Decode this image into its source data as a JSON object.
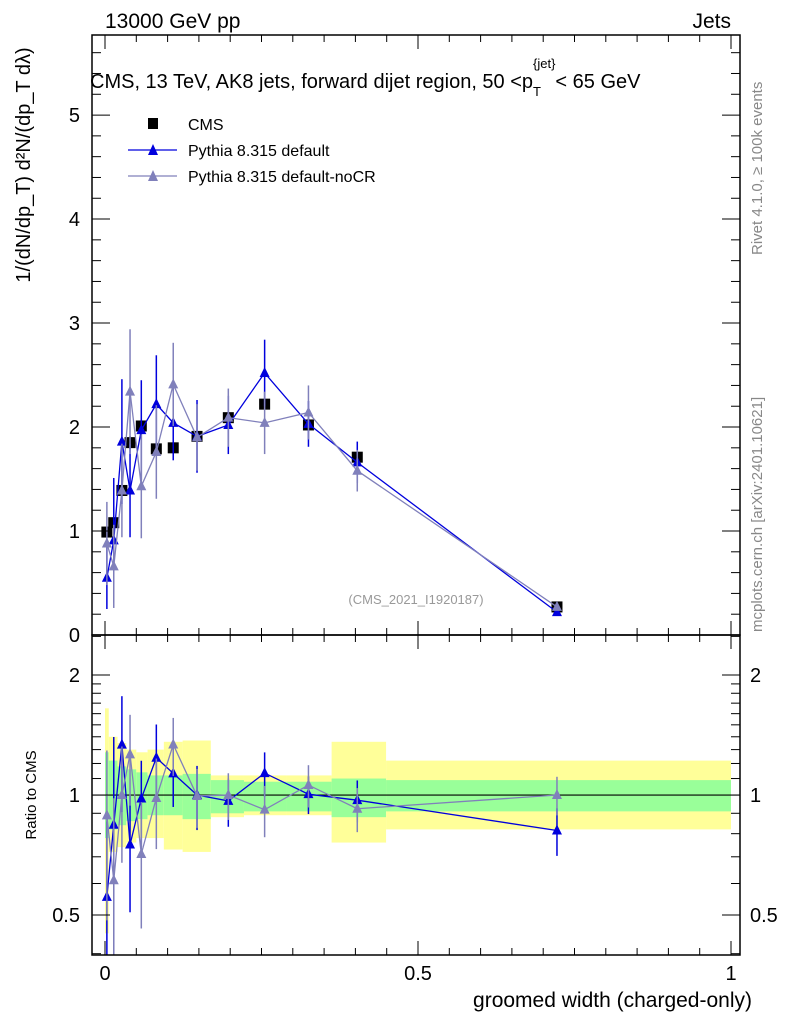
{
  "header": {
    "left": "13000 GeV pp",
    "right": "Jets"
  },
  "side_labels": {
    "rivet": "Rivet 4.1.0, ≥ 100k events",
    "mcplots": "mcplots.cern.ch [arXiv:2401.10621]"
  },
  "chart_data": {
    "type": "line",
    "title": "CMS, 13 TeV, AK8 jets, forward dijet region, 50 <p_T^{jet}< 65 GeV",
    "title_parts": {
      "main": "CMS, 13 TeV, AK8 jets, forward dijet region, 50 <p",
      "sub": "T",
      "sup": "{jet}",
      "tail": "< 65 GeV"
    },
    "analysis_tag": "(CMS_2021_I1920187)",
    "xlabel": "groomed width (charged-only)",
    "ylabel": "1/(dN/dp_T) d²N/(dp_T dλ)",
    "ratio_ylabel": "Ratio to CMS",
    "xlim": [
      0,
      1
    ],
    "ylim": [
      0,
      5.77
    ],
    "ratio_ylim": [
      0.397,
      2.52
    ],
    "ratio_scale": "log",
    "x_ticks": [
      0,
      0.5,
      1
    ],
    "x_tick_labels": [
      "0",
      "0.5",
      "1"
    ],
    "y_ticks": [
      0,
      1,
      2,
      3,
      4,
      5
    ],
    "y_tick_labels": [
      "0",
      "1",
      "2",
      "3",
      "4",
      "5"
    ],
    "ratio_ticks": [
      0.5,
      1,
      2
    ],
    "ratio_tick_labels": [
      "0.5",
      "1",
      "2"
    ],
    "legend_position": "top-left",
    "x": [
      0.003,
      0.014,
      0.027,
      0.04,
      0.058,
      0.082,
      0.109,
      0.147,
      0.197,
      0.255,
      0.325,
      0.403,
      0.722
    ],
    "bin_edges": [
      0,
      0.006,
      0.02,
      0.034,
      0.05,
      0.068,
      0.094,
      0.124,
      0.169,
      0.222,
      0.29,
      0.362,
      0.449,
      1.0
    ],
    "series": [
      {
        "name": "CMS",
        "color": "#000000",
        "marker": "square",
        "values": [
          0.99,
          1.08,
          1.39,
          1.85,
          2.01,
          1.79,
          1.8,
          1.91,
          2.09,
          2.22,
          2.02,
          1.71,
          0.27
        ],
        "errors": [
          0.05,
          0.05,
          0.05,
          0.06,
          0.06,
          0.06,
          0.06,
          0.05,
          0.05,
          0.05,
          0.05,
          0.05,
          0.02
        ]
      },
      {
        "name": "Pythia 8.315 default",
        "color": "#0000dd",
        "marker": "triangle",
        "values": [
          0.55,
          0.91,
          1.86,
          1.39,
          1.97,
          2.22,
          2.04,
          1.91,
          2.02,
          2.52,
          2.03,
          1.66,
          0.22
        ],
        "errors": [
          0.3,
          0.6,
          0.6,
          0.45,
          0.48,
          0.47,
          0.36,
          0.35,
          0.28,
          0.32,
          0.22,
          0.2,
          0.03
        ]
      },
      {
        "name": "Pythia 8.315 default-noCR",
        "color": "#8080bb",
        "marker": "triangle",
        "values": [
          0.88,
          0.66,
          1.39,
          2.34,
          1.43,
          1.76,
          2.41,
          1.9,
          2.09,
          2.04,
          2.14,
          1.58,
          0.27
        ],
        "errors": [
          0.4,
          0.4,
          0.45,
          0.6,
          0.5,
          0.45,
          0.4,
          0.32,
          0.28,
          0.3,
          0.26,
          0.2,
          0.03
        ]
      }
    ],
    "bands": {
      "stat_color": "#99ff99",
      "total_color": "#ffff99",
      "stat_lo": [
        0.78,
        0.82,
        0.84,
        0.86,
        0.87,
        0.89,
        0.89,
        0.87,
        0.9,
        0.91,
        0.91,
        0.88,
        0.91
      ],
      "stat_hi": [
        1.28,
        1.22,
        1.18,
        1.16,
        1.14,
        1.12,
        1.12,
        1.13,
        1.09,
        1.08,
        1.08,
        1.1,
        1.09
      ],
      "total_lo": [
        0.45,
        0.72,
        0.74,
        0.76,
        0.78,
        0.78,
        0.73,
        0.72,
        0.88,
        0.89,
        0.89,
        0.76,
        0.82
      ],
      "total_hi": [
        1.65,
        1.4,
        1.35,
        1.3,
        1.28,
        1.3,
        1.36,
        1.37,
        1.12,
        1.12,
        1.12,
        1.36,
        1.22
      ]
    }
  }
}
